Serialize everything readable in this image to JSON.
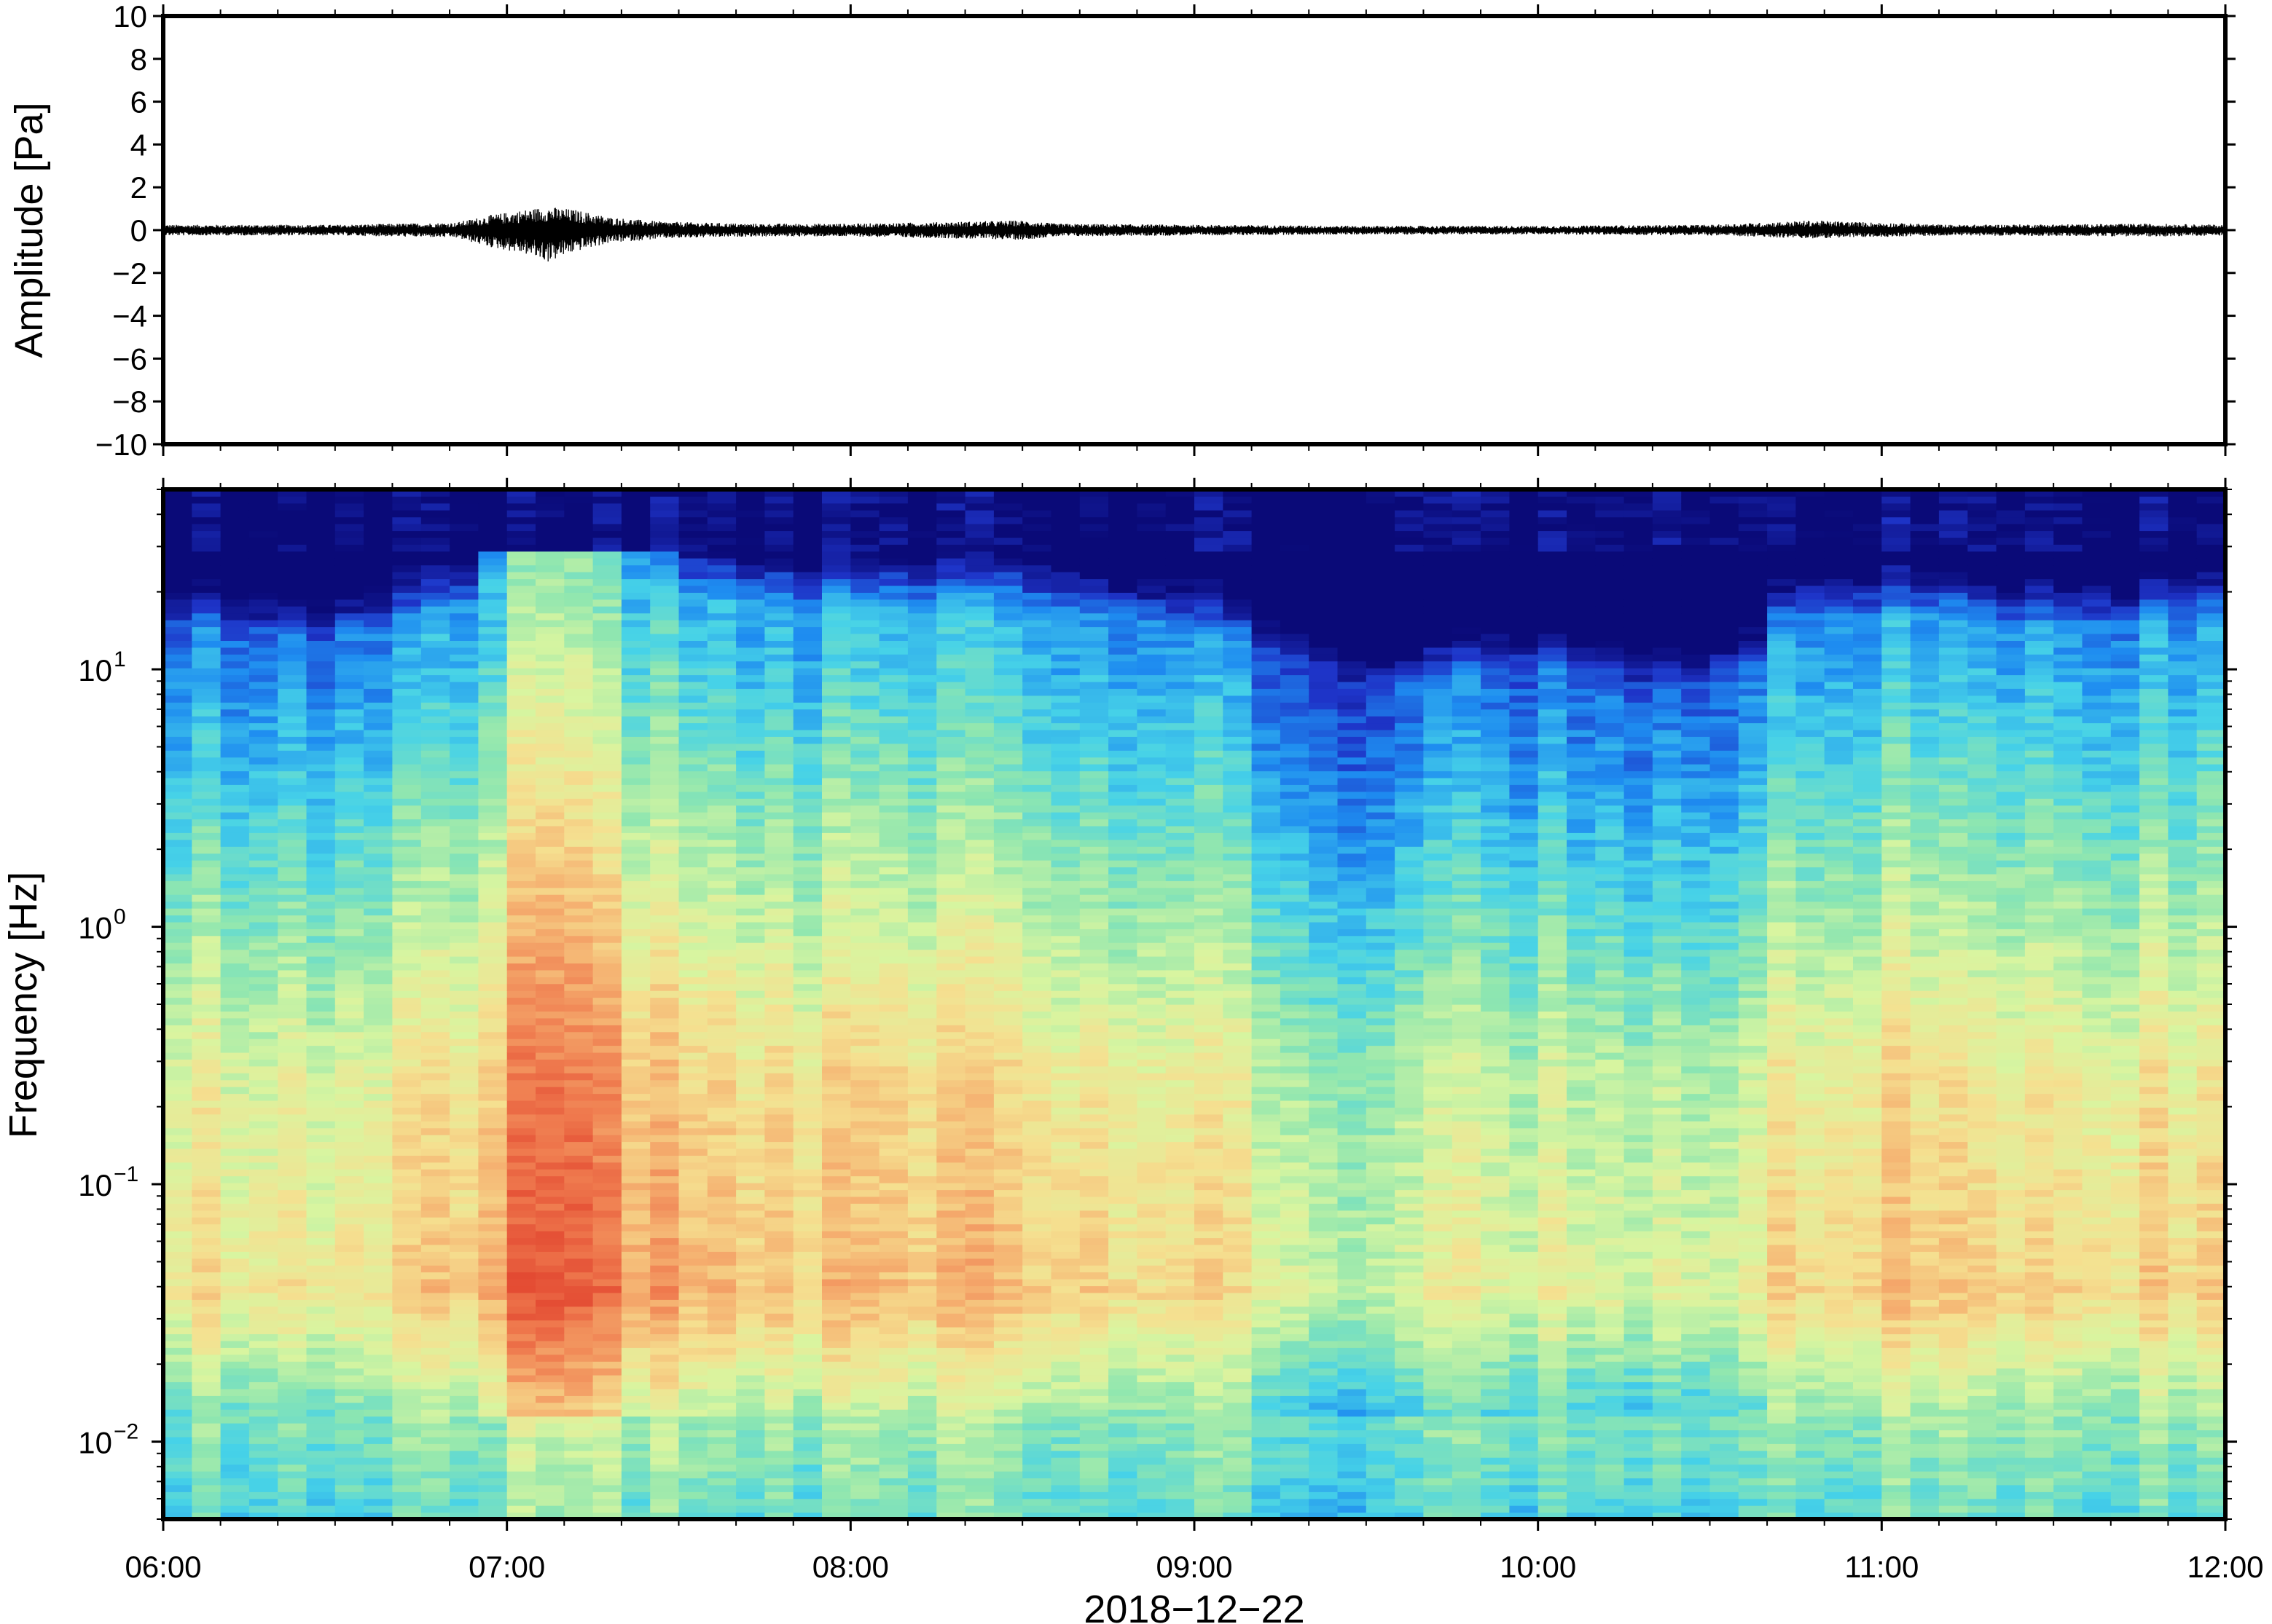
{
  "chart_data": [
    {
      "type": "line",
      "panel": "waveform",
      "ylabel": "Amplitude [Pa]",
      "ylim": [
        -10,
        10
      ],
      "yticks": [
        10,
        8,
        6,
        4,
        2,
        0,
        -2,
        -4,
        -6,
        -8,
        -10
      ],
      "ytick_labels": [
        "10",
        "8",
        "6",
        "4",
        "2",
        "0",
        "−2",
        "−4",
        "−6",
        "−8",
        "−10"
      ],
      "x_range_hours": [
        6,
        12
      ],
      "envelope": {
        "hours": [
          6.0,
          6.5,
          6.85,
          6.95,
          7.05,
          7.12,
          7.2,
          7.3,
          7.45,
          7.7,
          8.0,
          8.5,
          8.6,
          9.0,
          9.5,
          10.0,
          10.5,
          10.8,
          10.9,
          11.2,
          11.8,
          12.0
        ],
        "max_pa": [
          0.25,
          0.25,
          0.35,
          0.7,
          0.95,
          1.1,
          0.95,
          0.6,
          0.4,
          0.3,
          0.3,
          0.45,
          0.3,
          0.25,
          0.2,
          0.2,
          0.25,
          0.45,
          0.4,
          0.25,
          0.3,
          0.25
        ],
        "min_pa": [
          -0.25,
          -0.25,
          -0.35,
          -0.8,
          -1.1,
          -1.5,
          -1.0,
          -0.6,
          -0.4,
          -0.3,
          -0.3,
          -0.45,
          -0.3,
          -0.25,
          -0.2,
          -0.2,
          -0.25,
          -0.4,
          -0.35,
          -0.25,
          -0.3,
          -0.25
        ]
      },
      "grid": false,
      "legend": "none"
    },
    {
      "type": "heatmap",
      "panel": "spectrogram",
      "ylabel": "Frequency [Hz]",
      "yscale": "log",
      "ylim_hz": [
        0.005,
        50
      ],
      "yticks": [
        {
          "base": "10",
          "exp": "1"
        },
        {
          "base": "10",
          "exp": "0"
        },
        {
          "base": "10",
          "exp": "−1"
        },
        {
          "base": "10",
          "exp": "−2"
        }
      ],
      "ytick_values_hz": [
        10,
        1,
        0.1,
        0.01
      ],
      "colormap": [
        "#0a0a78",
        "#1e34c8",
        "#1e8cf0",
        "#46d2e8",
        "#8ee6b0",
        "#d8f5a0",
        "#f5e090",
        "#f5b070",
        "#ef7a4e",
        "#e34a32"
      ],
      "activity_profile": {
        "hours": [
          6.0,
          6.5,
          6.9,
          7.0,
          7.1,
          7.2,
          7.3,
          7.5,
          7.8,
          8.0,
          8.5,
          9.0,
          9.3,
          9.5,
          9.8,
          10.0,
          10.3,
          10.6,
          10.75,
          11.0,
          11.5,
          12.0
        ],
        "level": [
          0.45,
          0.4,
          0.55,
          0.85,
          1.0,
          1.0,
          0.8,
          0.6,
          0.55,
          0.55,
          0.55,
          0.45,
          0.3,
          0.2,
          0.25,
          0.3,
          0.2,
          0.25,
          0.5,
          0.5,
          0.45,
          0.5
        ]
      },
      "grid": false,
      "legend": "none"
    }
  ],
  "x_axis": {
    "ticks_hours": [
      6,
      7,
      8,
      9,
      10,
      11,
      12
    ],
    "tick_labels": [
      "06:00",
      "07:00",
      "08:00",
      "09:00",
      "10:00",
      "11:00",
      "12:00"
    ],
    "xlabel": "2018−12−22"
  }
}
